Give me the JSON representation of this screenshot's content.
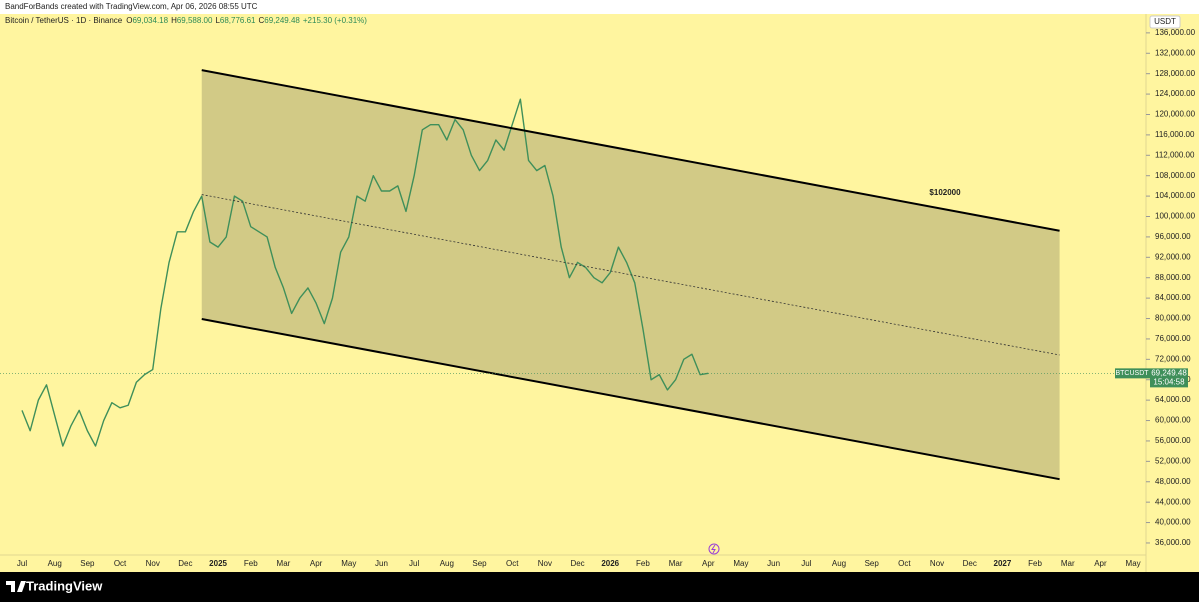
{
  "header": {
    "credit": "BandForBands created with TradingView.com, Apr 06, 2026 08:55 UTC"
  },
  "chart_data": {
    "type": "line",
    "title": "Bitcoin / TetherUS · 1D · Binance",
    "ohlc": [
      {
        "key": "O",
        "value": "69,034.18"
      },
      {
        "key": "H",
        "value": "69,588.00"
      },
      {
        "key": "L",
        "value": "68,776.61"
      },
      {
        "key": "C",
        "value": "69,249.48"
      }
    ],
    "change": "+215.30 (+0.31%)",
    "currency": "USDT",
    "categories": [
      "Jul",
      null,
      null,
      null,
      "Aug",
      null,
      null,
      null,
      "Sep",
      null,
      null,
      null,
      "Oct",
      null,
      null,
      null,
      "Nov",
      null,
      null,
      null,
      "Dec",
      null,
      null,
      null,
      "2025",
      null,
      null,
      null,
      "Feb",
      null,
      null,
      null,
      "Mar",
      null,
      null,
      null,
      "Apr",
      null,
      null,
      null,
      "May",
      null,
      null,
      null,
      "Jun",
      null,
      null,
      null,
      "Jul",
      null,
      null,
      null,
      "Aug",
      null,
      null,
      null,
      "Sep",
      null,
      null,
      null,
      "Oct",
      null,
      null,
      null,
      "Nov",
      null,
      null,
      null,
      "Dec",
      null,
      null,
      null,
      "2026",
      null,
      null,
      null,
      "Feb",
      null,
      null,
      null,
      "Mar",
      null,
      null,
      null,
      "Apr",
      null,
      null,
      null,
      "May",
      null,
      null,
      null,
      "Jun",
      null,
      null,
      null,
      "Jul",
      null,
      null,
      null,
      "Aug",
      null,
      null,
      null,
      "Sep",
      null,
      null,
      null,
      "Oct",
      null,
      null,
      null,
      "Nov",
      null,
      null,
      null,
      "Dec",
      null,
      null,
      null,
      "2027",
      null,
      null,
      null,
      "Feb",
      null,
      null,
      null,
      "Mar",
      null,
      null,
      null,
      "Apr",
      null,
      null,
      null,
      "May",
      null,
      null,
      null
    ],
    "series": [
      {
        "name": "BTCUSDT",
        "color": "#3f8f5a",
        "values": [
          62000,
          58000,
          64000,
          67000,
          61000,
          55000,
          59000,
          62000,
          58000,
          55000,
          60000,
          63500,
          62500,
          63000,
          67500,
          69000,
          70000,
          82000,
          91000,
          97000,
          97000,
          101000,
          104000,
          95000,
          94000,
          96000,
          104000,
          103000,
          98000,
          97000,
          96000,
          90000,
          86000,
          81000,
          84000,
          86000,
          83000,
          79000,
          84000,
          93000,
          96000,
          104000,
          103000,
          108000,
          105000,
          105000,
          106000,
          101000,
          108000,
          117000,
          118000,
          118000,
          115000,
          119000,
          117000,
          112000,
          109000,
          111000,
          115000,
          113000,
          118000,
          123000,
          111000,
          109000,
          110000,
          104000,
          94000,
          88000,
          91000,
          90000,
          88000,
          87000,
          89000,
          94000,
          91000,
          87000,
          78000,
          68000,
          69000,
          66000,
          68000,
          72000,
          73000,
          69000,
          69249.48,
          null,
          null,
          null,
          null,
          null,
          null,
          null,
          null,
          null,
          null,
          null,
          null,
          null,
          null,
          null,
          null,
          null,
          null,
          null,
          null,
          null,
          null,
          null,
          null,
          null,
          null,
          null,
          null,
          null,
          null,
          null,
          null,
          null,
          null,
          null,
          null,
          null,
          null,
          null,
          null,
          null,
          null,
          null,
          null,
          null,
          null,
          null,
          null,
          null,
          null,
          null,
          null,
          null,
          null,
          null
        ]
      }
    ],
    "last": {
      "value": 69249.48,
      "label": "69,249.48",
      "symbol": "BTCUSDT",
      "countdown": "15:04:58"
    },
    "channel": {
      "from": 22,
      "to": 127,
      "upper": [
        128700,
        97200
      ],
      "lower": [
        79900,
        48500
      ],
      "label": "$102000",
      "fill": "#8f8a62"
    },
    "ylim": [
      30700,
      139700
    ],
    "yticks": [
      {
        "value": 36000,
        "label": "36,000.00"
      },
      {
        "value": 40000,
        "label": "40,000.00"
      },
      {
        "value": 44000,
        "label": "44,000.00"
      },
      {
        "value": 48000,
        "label": "48,000.00"
      },
      {
        "value": 52000,
        "label": "52,000.00"
      },
      {
        "value": 56000,
        "label": "56,000.00"
      },
      {
        "value": 60000,
        "label": "60,000.00"
      },
      {
        "value": 64000,
        "label": "64,000.00"
      },
      {
        "value": 68000,
        "label": "68,000.00"
      },
      {
        "value": 72000,
        "label": "72,000.00"
      },
      {
        "value": 76000,
        "label": "76,000.00"
      },
      {
        "value": 80000,
        "label": "80,000.00"
      },
      {
        "value": 84000,
        "label": "84,000.00"
      },
      {
        "value": 88000,
        "label": "88,000.00"
      },
      {
        "value": 92000,
        "label": "92,000.00"
      },
      {
        "value": 96000,
        "label": "96,000.00"
      },
      {
        "value": 100000,
        "label": "100,000.00"
      },
      {
        "value": 104000,
        "label": "104,000.00"
      },
      {
        "value": 108000,
        "label": "108,000.00"
      },
      {
        "value": 112000,
        "label": "112,000.00"
      },
      {
        "value": 116000,
        "label": "116,000.00"
      },
      {
        "value": 120000,
        "label": "120,000.00"
      },
      {
        "value": 124000,
        "label": "124,000.00"
      },
      {
        "value": 128000,
        "label": "128,000.00"
      },
      {
        "value": 132000,
        "label": "132,000.00"
      },
      {
        "value": 136000,
        "label": "136,000.00"
      }
    ],
    "grid": false
  },
  "footer": {
    "brand": "TradingView"
  }
}
